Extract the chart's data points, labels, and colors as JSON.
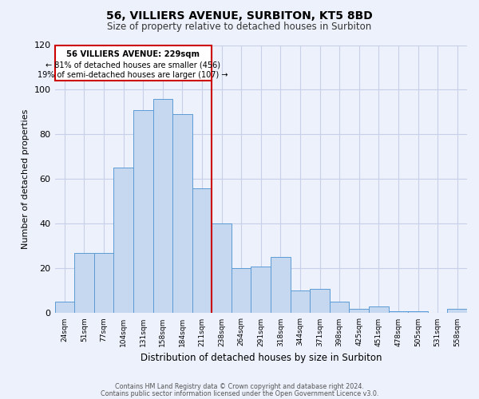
{
  "title": "56, VILLIERS AVENUE, SURBITON, KT5 8BD",
  "subtitle": "Size of property relative to detached houses in Surbiton",
  "xlabel": "Distribution of detached houses by size in Surbiton",
  "ylabel": "Number of detached properties",
  "footer_lines": [
    "Contains HM Land Registry data © Crown copyright and database right 2024.",
    "Contains public sector information licensed under the Open Government Licence v3.0."
  ],
  "categories": [
    "24sqm",
    "51sqm",
    "77sqm",
    "104sqm",
    "131sqm",
    "158sqm",
    "184sqm",
    "211sqm",
    "238sqm",
    "264sqm",
    "291sqm",
    "318sqm",
    "344sqm",
    "371sqm",
    "398sqm",
    "425sqm",
    "451sqm",
    "478sqm",
    "505sqm",
    "531sqm",
    "558sqm"
  ],
  "bar_heights": [
    5,
    27,
    27,
    65,
    91,
    96,
    89,
    56,
    40,
    20,
    21,
    25,
    10,
    11,
    5,
    2,
    3,
    1,
    1,
    0,
    2
  ],
  "bar_color": "#c5d8f0",
  "bar_edge_color": "#5b9bd5",
  "vline_color": "#cc0000",
  "annotation_title": "56 VILLIERS AVENUE: 229sqm",
  "annotation_line1": "← 81% of detached houses are smaller (456)",
  "annotation_line2": "19% of semi-detached houses are larger (107) →",
  "annotation_box_color": "#cc0000",
  "ylim": [
    0,
    120
  ],
  "yticks": [
    0,
    20,
    40,
    60,
    80,
    100,
    120
  ],
  "background_color": "#edf1fb",
  "grid_color": "#c8cfe8"
}
